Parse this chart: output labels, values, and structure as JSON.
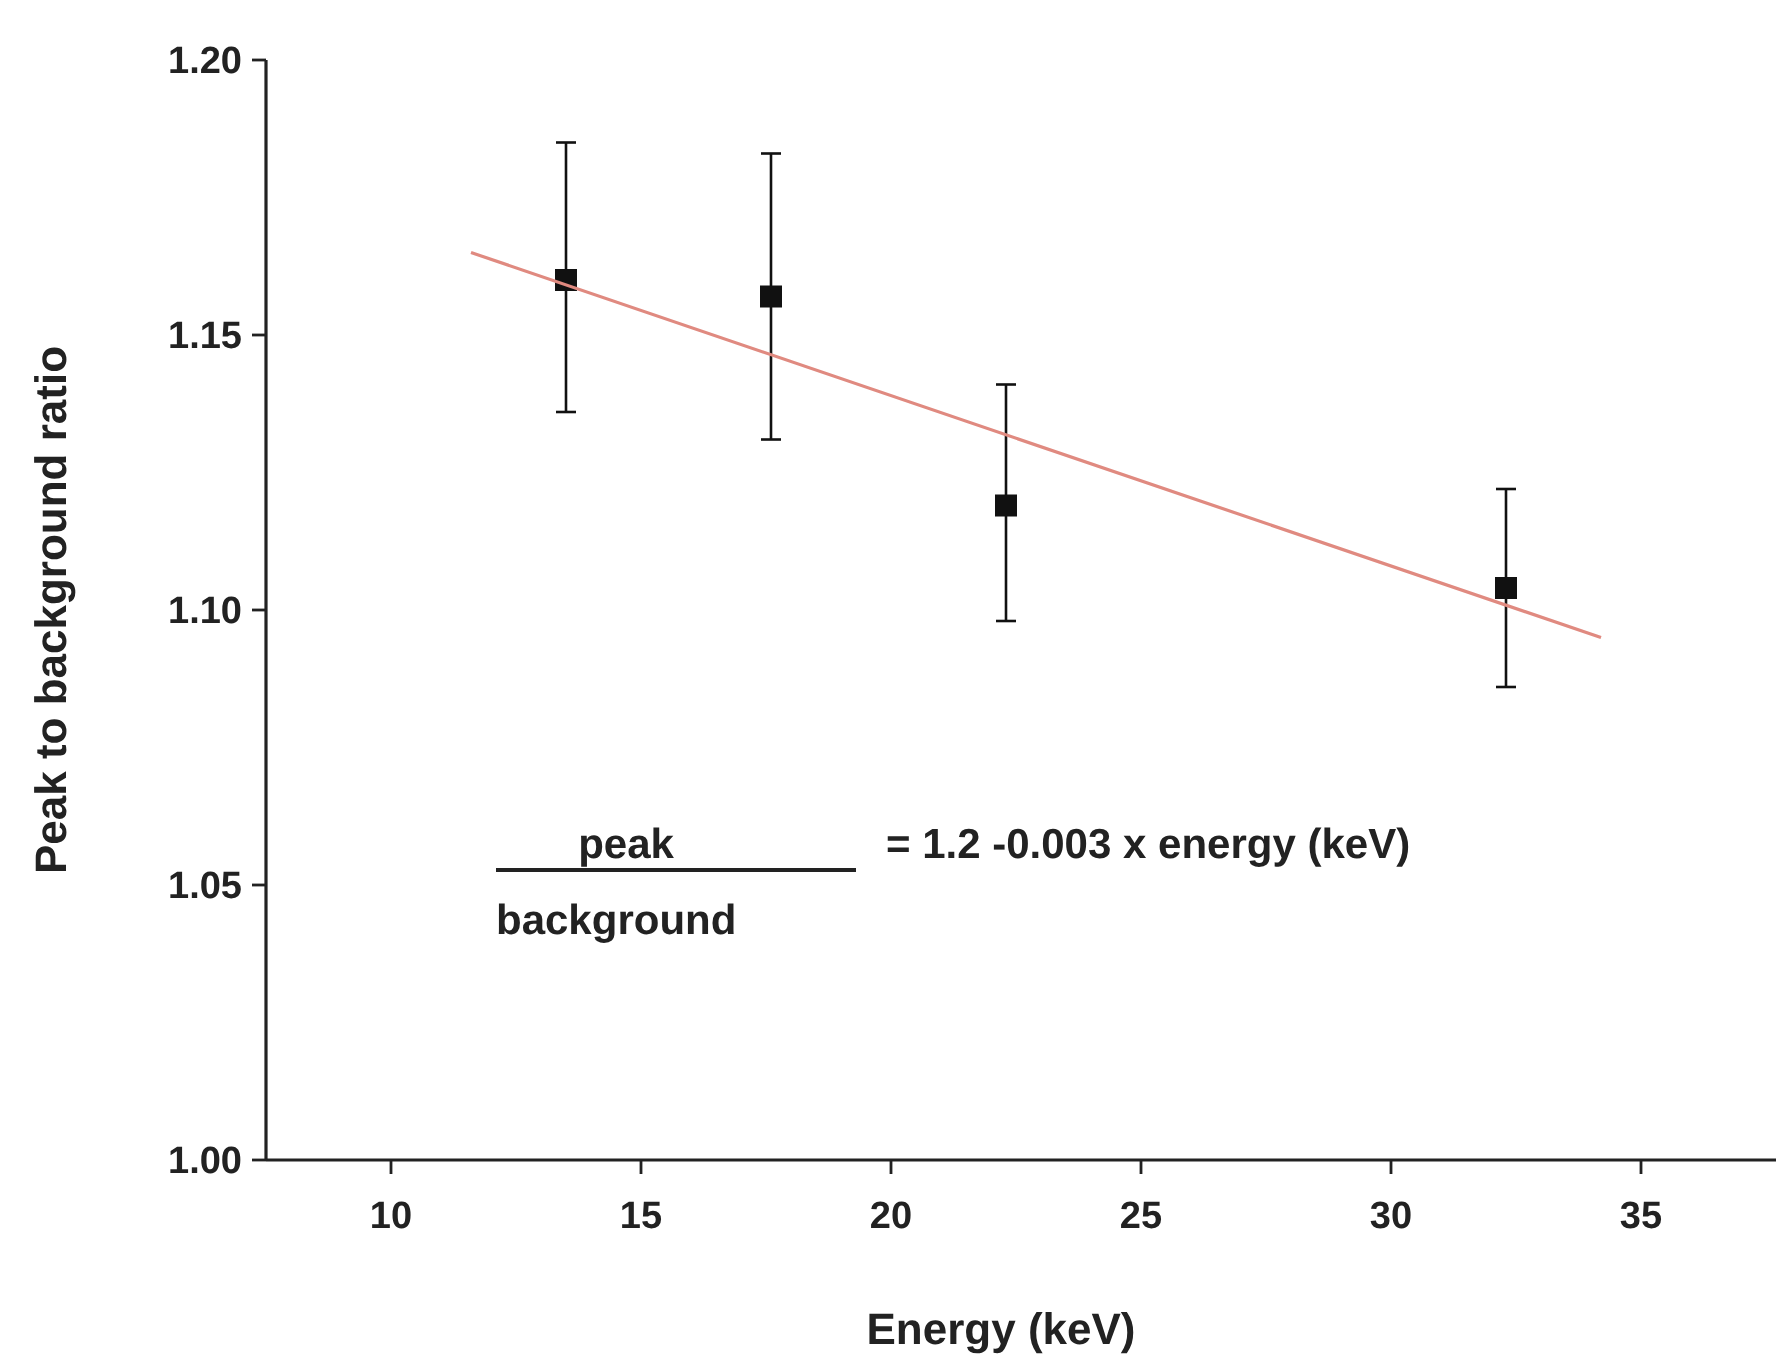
{
  "chart_data": {
    "type": "scatter",
    "xlabel": "Energy (keV)",
    "ylabel": "Peak to background ratio",
    "xlim": [
      7.5,
      37.7
    ],
    "xticks": [
      10,
      15,
      20,
      25,
      30,
      35
    ],
    "ylim": [
      1.0,
      1.2
    ],
    "yticks": [
      {
        "value": 1.0,
        "label": "1.00"
      },
      {
        "value": 1.05,
        "label": "1.05"
      },
      {
        "value": 1.1,
        "label": "1.10"
      },
      {
        "value": 1.15,
        "label": "1.15"
      },
      {
        "value": 1.2,
        "label": "1.20"
      }
    ],
    "grid": false,
    "series": [
      {
        "marker": "square",
        "color": "#111111",
        "x": [
          13.5,
          17.6,
          22.3,
          32.3
        ],
        "values": [
          1.16,
          1.157,
          1.119,
          1.104
        ],
        "errors": [
          [
            1.136,
            1.185
          ],
          [
            1.131,
            1.183
          ],
          [
            1.098,
            1.141
          ],
          [
            1.086,
            1.122
          ]
        ]
      },
      {
        "type": "line",
        "color": "#e08a80",
        "line_style": "solid",
        "x": [
          11.6,
          34.2
        ],
        "values": [
          1.165,
          1.095
        ]
      }
    ],
    "annotations": [
      "peak",
      "background",
      "= 1.2 -0.003 x energy (keV)"
    ]
  }
}
